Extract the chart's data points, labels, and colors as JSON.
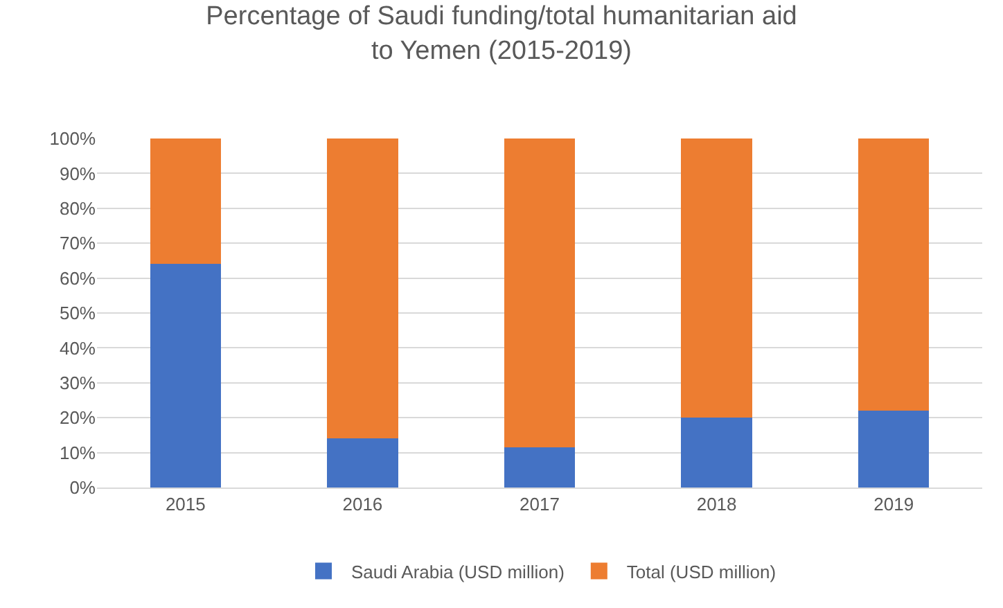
{
  "chart_data": {
    "type": "bar",
    "stacked": true,
    "title": "Percentage of Saudi funding/total humanitarian aid to Yemen (2015-2019)",
    "categories": [
      "2015",
      "2016",
      "2017",
      "2018",
      "2019"
    ],
    "series": [
      {
        "name": "Saudi Arabia (USD million)",
        "color": "#4472c4",
        "values": [
          64,
          14,
          11.5,
          20,
          22
        ]
      },
      {
        "name": "Total (USD million)",
        "color": "#ed7d31",
        "values": [
          36,
          86,
          88.5,
          80,
          78
        ]
      }
    ],
    "ylim": [
      0,
      100
    ],
    "yticks": [
      {
        "value": 0,
        "label": "0%"
      },
      {
        "value": 10,
        "label": "10%"
      },
      {
        "value": 20,
        "label": "20%"
      },
      {
        "value": 30,
        "label": "30%"
      },
      {
        "value": 40,
        "label": "40%"
      },
      {
        "value": 50,
        "label": "50%"
      },
      {
        "value": 60,
        "label": "60%"
      },
      {
        "value": 70,
        "label": "70%"
      },
      {
        "value": 80,
        "label": "80%"
      },
      {
        "value": 90,
        "label": "90%"
      },
      {
        "value": 100,
        "label": "100%"
      }
    ],
    "grid": "y",
    "legend": "bottom"
  }
}
